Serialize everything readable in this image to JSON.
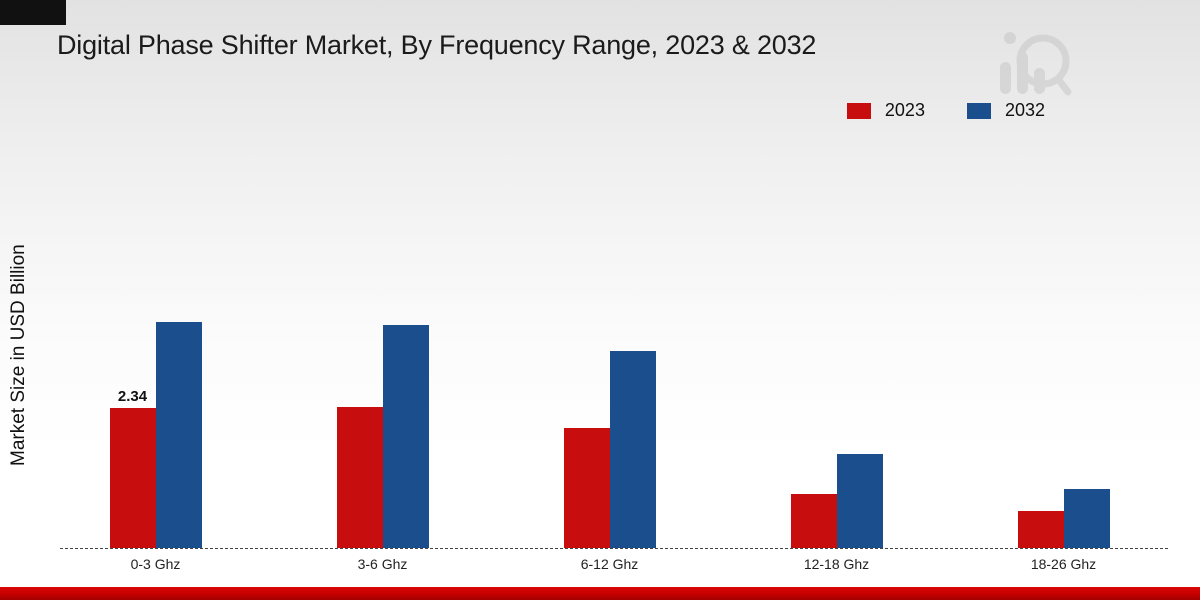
{
  "page": {
    "background_top_color": "#e2e2e2",
    "background_bottom_color": "#ffffff",
    "bottom_strip_color": "#c50000",
    "corner_block_color": "#111111",
    "watermark_color": "#c7c7c7"
  },
  "chart_data": {
    "type": "bar",
    "title": "Digital Phase Shifter Market, By Frequency Range, 2023 & 2032",
    "ylabel": "Market Size in USD Billion",
    "xlabel": "",
    "categories": [
      "0-3 Ghz",
      "3-6 Ghz",
      "6-12 Ghz",
      "12-18 Ghz",
      "18-26 Ghz"
    ],
    "series": [
      {
        "name": "2023",
        "color": "#c70d0d",
        "values": [
          2.34,
          2.35,
          2.0,
          0.9,
          0.62
        ]
      },
      {
        "name": "2032",
        "color": "#1a4e8c",
        "values": [
          3.76,
          3.72,
          3.28,
          1.57,
          0.98
        ]
      }
    ],
    "ylim": [
      0,
      4
    ],
    "grid": false,
    "axis_ticks_visible": false,
    "legend_position": "top-right",
    "baseline_style": "dashed",
    "data_labels": [
      {
        "category": "0-3 Ghz",
        "series": "2023",
        "text": "2.34"
      }
    ]
  }
}
